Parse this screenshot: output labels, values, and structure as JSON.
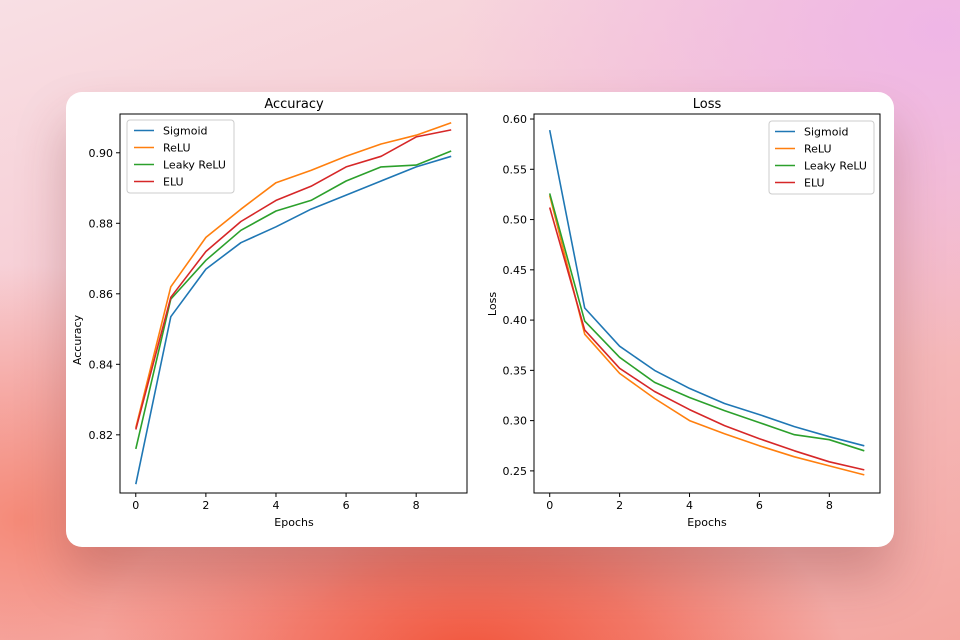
{
  "colors": {
    "Sigmoid": "#1f77b4",
    "ReLU": "#ff7f0e",
    "Leaky ReLU": "#2ca02c",
    "ELU": "#d62728"
  },
  "chart_data": [
    {
      "type": "line",
      "title": "Accuracy",
      "xlabel": "Epochs",
      "ylabel": "Accuracy",
      "x": [
        0,
        1,
        2,
        3,
        4,
        5,
        6,
        7,
        8,
        9
      ],
      "xlim": [
        -0.45,
        9.45
      ],
      "ylim": [
        0.8035,
        0.911
      ],
      "xticks": [
        0,
        2,
        4,
        6,
        8
      ],
      "yticks": [
        0.82,
        0.84,
        0.86,
        0.88,
        0.9
      ],
      "ytick_labels": [
        "0.82",
        "0.84",
        "0.86",
        "0.88",
        "0.90"
      ],
      "legend_position": "upper-left",
      "series": [
        {
          "name": "Sigmoid",
          "values": [
            0.806,
            0.8535,
            0.867,
            0.8745,
            0.879,
            0.884,
            0.888,
            0.892,
            0.896,
            0.899
          ]
        },
        {
          "name": "ReLU",
          "values": [
            0.822,
            0.862,
            0.876,
            0.884,
            0.8915,
            0.895,
            0.899,
            0.9025,
            0.905,
            0.9085
          ]
        },
        {
          "name": "Leaky ReLU",
          "values": [
            0.816,
            0.8585,
            0.8695,
            0.878,
            0.8835,
            0.8865,
            0.892,
            0.896,
            0.8965,
            0.9005
          ]
        },
        {
          "name": "ELU",
          "values": [
            0.8215,
            0.859,
            0.872,
            0.8805,
            0.8865,
            0.8905,
            0.896,
            0.899,
            0.9045,
            0.9065
          ]
        }
      ]
    },
    {
      "type": "line",
      "title": "Loss",
      "xlabel": "Epochs",
      "ylabel": "Loss",
      "x": [
        0,
        1,
        2,
        3,
        4,
        5,
        6,
        7,
        8,
        9
      ],
      "xlim": [
        -0.45,
        9.45
      ],
      "ylim": [
        0.228,
        0.605
      ],
      "xticks": [
        0,
        2,
        4,
        6,
        8
      ],
      "yticks": [
        0.25,
        0.3,
        0.35,
        0.4,
        0.45,
        0.5,
        0.55,
        0.6
      ],
      "ytick_labels": [
        "0.25",
        "0.30",
        "0.35",
        "0.40",
        "0.45",
        "0.50",
        "0.55",
        "0.60"
      ],
      "legend_position": "upper-right",
      "series": [
        {
          "name": "Sigmoid",
          "values": [
            0.589,
            0.412,
            0.374,
            0.35,
            0.332,
            0.317,
            0.306,
            0.294,
            0.284,
            0.275
          ]
        },
        {
          "name": "ReLU",
          "values": [
            0.524,
            0.386,
            0.347,
            0.322,
            0.3,
            0.287,
            0.275,
            0.264,
            0.255,
            0.246
          ]
        },
        {
          "name": "Leaky ReLU",
          "values": [
            0.526,
            0.399,
            0.363,
            0.338,
            0.323,
            0.31,
            0.298,
            0.286,
            0.281,
            0.27
          ]
        },
        {
          "name": "ELU",
          "values": [
            0.512,
            0.39,
            0.352,
            0.329,
            0.311,
            0.295,
            0.282,
            0.27,
            0.259,
            0.251
          ]
        }
      ]
    }
  ]
}
